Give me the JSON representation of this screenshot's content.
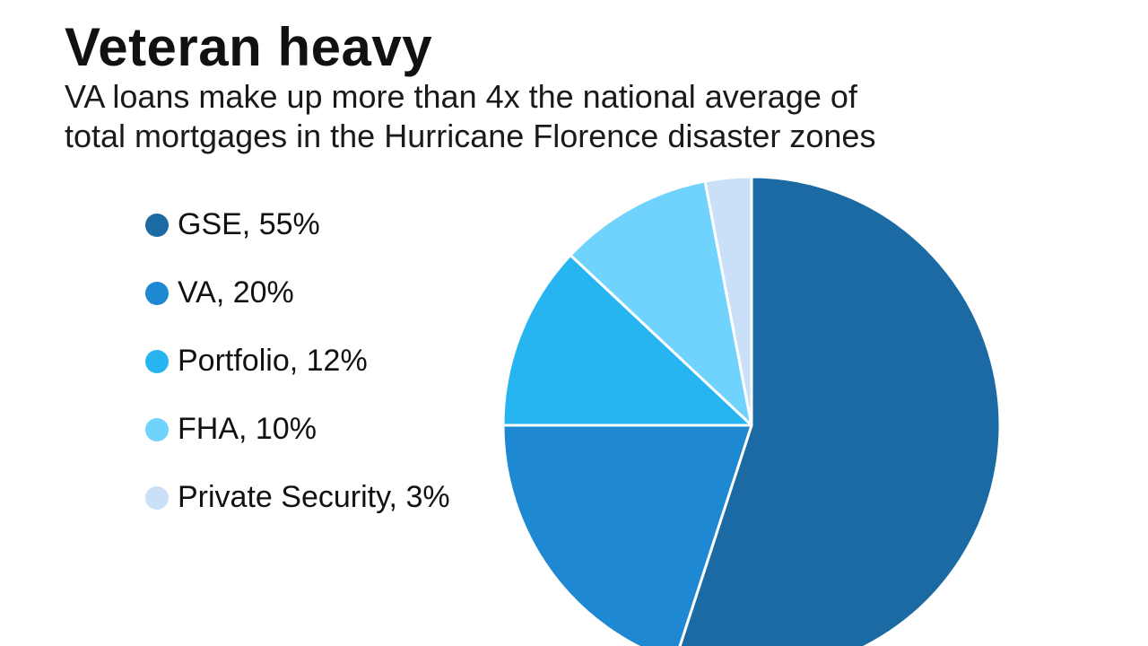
{
  "title": "Veteran heavy",
  "subtitle_lines": [
    "VA loans make up more than 4x the national average of",
    "total mortgages in the Hurricane Florence disaster zones"
  ],
  "chart_data": {
    "type": "pie",
    "title": "Veteran heavy",
    "subtitle": "VA loans make up more than 4x the national average of total mortgages in the Hurricane Florence disaster zones",
    "legend_position": "left",
    "slices": [
      {
        "name": "GSE",
        "value": 55,
        "label": "GSE, 55%",
        "color": "#1c6aa3"
      },
      {
        "name": "VA",
        "value": 20,
        "label": "VA, 20%",
        "color": "#1f88d3"
      },
      {
        "name": "Portfolio",
        "value": 12,
        "label": "Portfolio, 12%",
        "color": "#27b5f2"
      },
      {
        "name": "FHA",
        "value": 10,
        "label": "FHA, 10%",
        "color": "#70d3fd"
      },
      {
        "name": "Private Security",
        "value": 3,
        "label": "Private Security, 3%",
        "color": "#c9e0f8"
      }
    ]
  }
}
